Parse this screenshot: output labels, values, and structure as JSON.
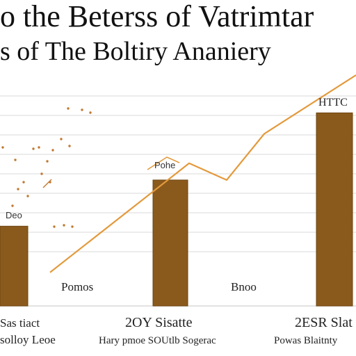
{
  "chart_data": {
    "type": "bar",
    "title_lines": [
      "o the Beterss of Vatrimtar",
      "s of The Boltiry Ananiery"
    ],
    "categories": [
      {
        "line1": "Sas tiact",
        "line2": "solloy Leoe"
      },
      {
        "line1": "2OY Sisatte",
        "line2": "Hary pmoe SOUtlb Sogerac"
      },
      {
        "line1": "2ESR Slat",
        "line2": "Powas Blaitnty"
      }
    ],
    "bar_annotations": [
      "Deo",
      "Pohe",
      "HTTC"
    ],
    "mid_annotations": [
      "Pomos",
      "Bnoo"
    ],
    "values": [
      3.8,
      6.0,
      9.2
    ],
    "line_values": [
      1.6,
      6.8,
      6.0,
      8.2,
      11.0
    ],
    "ylim": [
      0,
      11
    ],
    "grid": true,
    "colors": {
      "bar": "#8a5a1c",
      "bar_edge": "#6e4512",
      "line": "#e39a3c",
      "grid": "#d9d9d9",
      "dots": "#c07a32"
    }
  }
}
